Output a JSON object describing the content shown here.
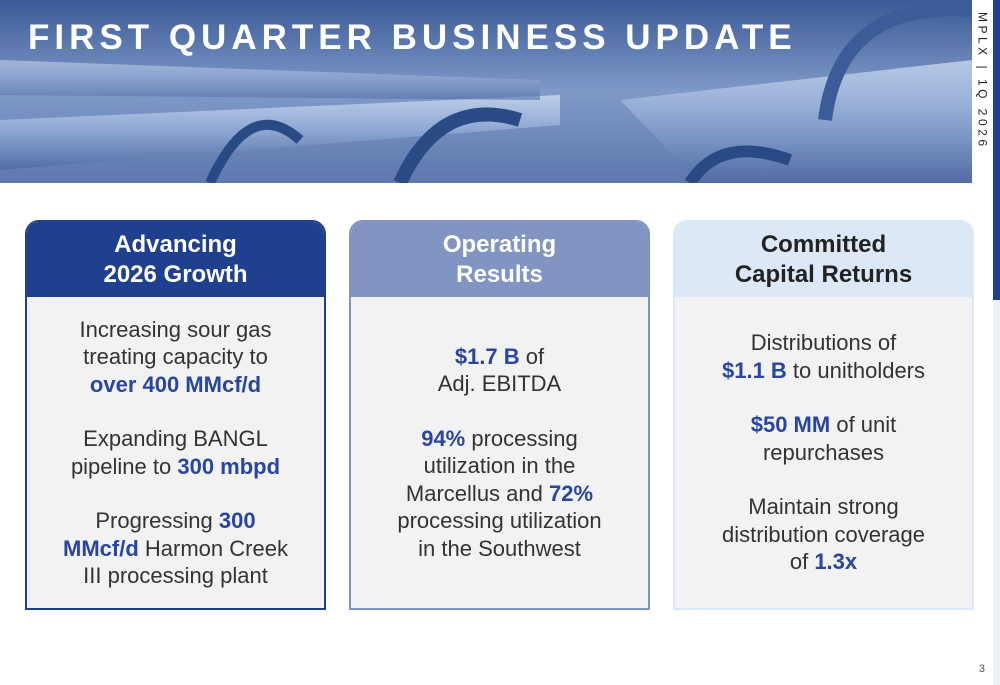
{
  "header": {
    "title": "FIRST QUARTER BUSINESS UPDATE",
    "side_label": "MPLX | 1Q 2026"
  },
  "cards": [
    {
      "heading": [
        "Advancing",
        "2026 Growth"
      ],
      "style": "dark",
      "paragraphs": [
        [
          [
            "Increasing sour gas"
          ],
          [
            "treating capacity to"
          ],
          [
            {
              "text": "over 400 MMcf/d",
              "bold": true
            }
          ]
        ],
        [
          [
            "Expanding BANGL"
          ],
          [
            "pipeline to ",
            {
              "text": "300 mbpd",
              "bold": true
            }
          ]
        ],
        [
          [
            "Progressing ",
            {
              "text": "300",
              "bold": true
            }
          ],
          [
            {
              "text": "MMcf/d",
              "bold": true
            },
            " Harmon Creek"
          ],
          [
            "III processing plant"
          ]
        ]
      ]
    },
    {
      "heading": [
        "Operating",
        "Results"
      ],
      "style": "medium",
      "paragraphs": [
        [
          [
            {
              "text": "$1.7 B",
              "bold": true
            },
            " of"
          ],
          [
            "Adj. EBITDA"
          ]
        ],
        [
          [
            {
              "text": "94%",
              "bold": true
            },
            " processing"
          ],
          [
            "utilization in the"
          ],
          [
            "Marcellus and ",
            {
              "text": "72%",
              "bold": true
            }
          ],
          [
            "processing utilization"
          ],
          [
            "in the Southwest"
          ]
        ]
      ]
    },
    {
      "heading": [
        "Committed",
        "Capital Returns"
      ],
      "style": "light",
      "paragraphs": [
        [
          [
            "Distributions of"
          ],
          [
            {
              "text": "$1.1 B",
              "bold": true
            },
            " to unitholders"
          ]
        ],
        [
          [
            {
              "text": "$50 MM",
              "bold": true
            },
            " of unit"
          ],
          [
            "repurchases"
          ]
        ],
        [
          [
            "Maintain strong"
          ],
          [
            "distribution coverage"
          ],
          [
            "of ",
            {
              "text": "1.3x",
              "bold": true
            }
          ]
        ]
      ]
    }
  ],
  "footer": {
    "page_number": "3"
  }
}
